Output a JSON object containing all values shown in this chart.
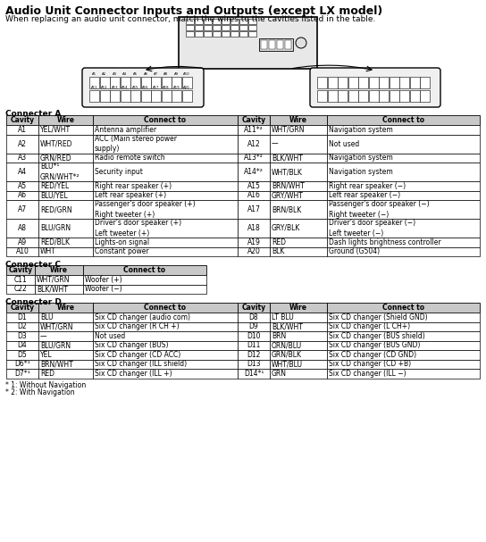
{
  "title": "Audio Unit Connector Inputs and Outputs (except LX model)",
  "subtitle": "When replacing an audio unit connector, match the wires to the cavities listed in the table.",
  "conn_a_header": [
    "Cavity",
    "Wire",
    "Connect to",
    "Cavity",
    "Wire",
    "Connect to"
  ],
  "conn_a_rows": [
    [
      "A1",
      "YEL/WHT",
      "Antenna amplifier",
      "A11*²",
      "WHT/GRN",
      "Navigation system"
    ],
    [
      "A2",
      "WHT/RED",
      "ACC (Main stereo power\nsupply)",
      "A12",
      "—",
      "Not used"
    ],
    [
      "A3",
      "GRN/RED",
      "Radio remote switch",
      "A13*²",
      "BLK/WHT",
      "Navigation system"
    ],
    [
      "A4",
      "BLU*¹\nGRN/WHT*²",
      "Security input",
      "A14*²",
      "WHT/BLK",
      "Navigation system"
    ],
    [
      "A5",
      "RED/YEL",
      "Right rear speaker (+)",
      "A15",
      "BRN/WHT",
      "Right rear speaker (−)"
    ],
    [
      "A6",
      "BLU/YEL",
      "Left rear speaker (+)",
      "A16",
      "GRY/WHT",
      "Left rear speaker (−)"
    ],
    [
      "A7",
      "RED/GRN",
      "Passenger's door speaker (+)\nRight tweeter (+)",
      "A17",
      "BRN/BLK",
      "Passenger's door speaker (−)\nRight tweeter (−)"
    ],
    [
      "A8",
      "BLU/GRN",
      "Driver's door speaker (+)\nLeft tweeter (+)",
      "A18",
      "GRY/BLK",
      "Driver's door speaker (−)\nLeft tweeter (−)"
    ],
    [
      "A9",
      "RED/BLK",
      "Lights-on signal",
      "A19",
      "RED",
      "Dash lights brightness controller"
    ],
    [
      "A10",
      "WHT",
      "Constant power",
      "A20",
      "BLK",
      "Ground (G504)"
    ]
  ],
  "conn_c_header": [
    "Cavity",
    "Wire",
    "Connect to"
  ],
  "conn_c_rows": [
    [
      "C11",
      "WHT/GRN",
      "Woofer (+)"
    ],
    [
      "C22",
      "BLK/WHT",
      "Woofer (−)"
    ]
  ],
  "conn_d_header": [
    "Cavity",
    "Wire",
    "Connect to",
    "Cavity",
    "Wire",
    "Connect to"
  ],
  "conn_d_rows": [
    [
      "D1",
      "BLU",
      "Six CD changer (audio com)",
      "D8",
      "LT BLU",
      "Six CD changer (Shield GND)"
    ],
    [
      "D2",
      "WHT/GRN",
      "Six CD changer (R CH +)",
      "D9",
      "BLK/WHT",
      "Six CD changer (L CH+)"
    ],
    [
      "D3",
      "—",
      "Not used",
      "D10",
      "BRN",
      "Six CD changer (BUS shield)"
    ],
    [
      "D4",
      "BLU/GRN",
      "Six CD changer (BUS)",
      "D11",
      "ORN/BLU",
      "Six CD changer (BUS GND)"
    ],
    [
      "D5",
      "YEL",
      "Six CD changer (CD ACC)",
      "D12",
      "GRN/BLK",
      "Six CD changer (CD GND)"
    ],
    [
      "D6*¹",
      "BRN/WHT",
      "Six CD changer (ILL shield)",
      "D13",
      "WHT/BLU",
      "Six CD changer (CD +B)"
    ],
    [
      "D7*¹",
      "RED",
      "Six CD changer (ILL +)",
      "D14*¹",
      "GRN",
      "Six CD changer (ILL −)"
    ]
  ],
  "footnotes": [
    "* 1: Without Navigation",
    "* 2: With Navigation"
  ],
  "bg_color": "#ffffff",
  "header_bg": "#c8c8c8",
  "font_size": 5.5,
  "title_fontsize": 9,
  "subtitle_fontsize": 6.5
}
